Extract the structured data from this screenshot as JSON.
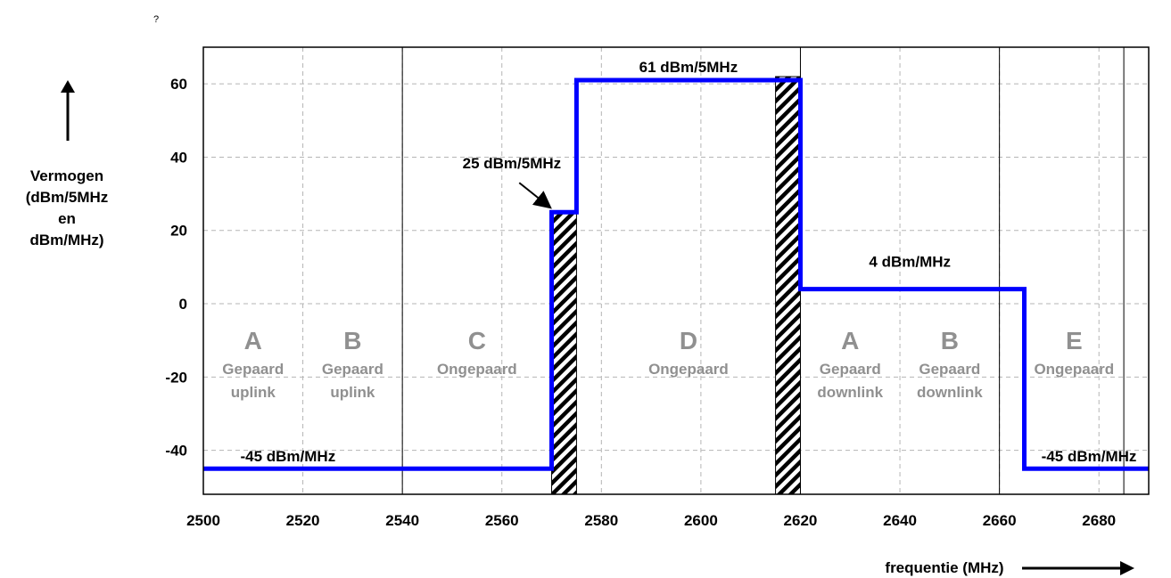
{
  "chart_data": {
    "type": "line",
    "marker": "?",
    "ylabel": [
      "Vermogen",
      "(dBm/5MHz",
      "en",
      "dBm/MHz)"
    ],
    "xlabel": "frequentie (MHz)",
    "xlim": [
      2500,
      2690
    ],
    "ylim": [
      -52,
      70
    ],
    "x_ticks": [
      2500,
      2520,
      2540,
      2560,
      2580,
      2600,
      2620,
      2640,
      2660,
      2680
    ],
    "y_ticks": [
      60,
      40,
      20,
      0,
      -20,
      -40
    ],
    "grid": true,
    "series": [
      {
        "color": "#0000ff",
        "points": [
          [
            2500,
            -45
          ],
          [
            2570,
            -45
          ],
          [
            2570,
            25
          ],
          [
            2575,
            25
          ],
          [
            2575,
            61
          ],
          [
            2620,
            61
          ],
          [
            2620,
            4
          ],
          [
            2665,
            4
          ],
          [
            2665,
            -45
          ],
          [
            2690,
            -45
          ]
        ]
      }
    ],
    "boundaries": [
      2540,
      2620,
      2660,
      2685
    ],
    "guard_bands": [
      [
        2570,
        2575
      ],
      [
        2615,
        2620
      ]
    ],
    "blocks": [
      {
        "letter": "A",
        "lines": [
          "Gepaard",
          "uplink"
        ],
        "x": 2510
      },
      {
        "letter": "B",
        "lines": [
          "Gepaard",
          "uplink"
        ],
        "x": 2530
      },
      {
        "letter": "C",
        "lines": [
          "Ongepaard"
        ],
        "x": 2555
      },
      {
        "letter": "D",
        "lines": [
          "Ongepaard"
        ],
        "x": 2597.5
      },
      {
        "letter": "A",
        "lines": [
          "Gepaard",
          "downlink"
        ],
        "x": 2630
      },
      {
        "letter": "B",
        "lines": [
          "Gepaard",
          "downlink"
        ],
        "x": 2650
      },
      {
        "letter": "E",
        "lines": [
          "Ongepaard"
        ],
        "x": 2675
      }
    ],
    "annotations": [
      {
        "text": "61 dBm/5MHz",
        "x": 2597.5,
        "y": 61
      },
      {
        "text": "25 dBm/5MHz",
        "x": 2562,
        "y": 37
      },
      {
        "text": "4 dBm/MHz",
        "x": 2642,
        "y": 4
      },
      {
        "text": "-45 dBm/MHz",
        "x": 2517,
        "y": -45
      },
      {
        "text": "-45 dBm/MHz",
        "x": 2678,
        "y": -45
      }
    ]
  }
}
